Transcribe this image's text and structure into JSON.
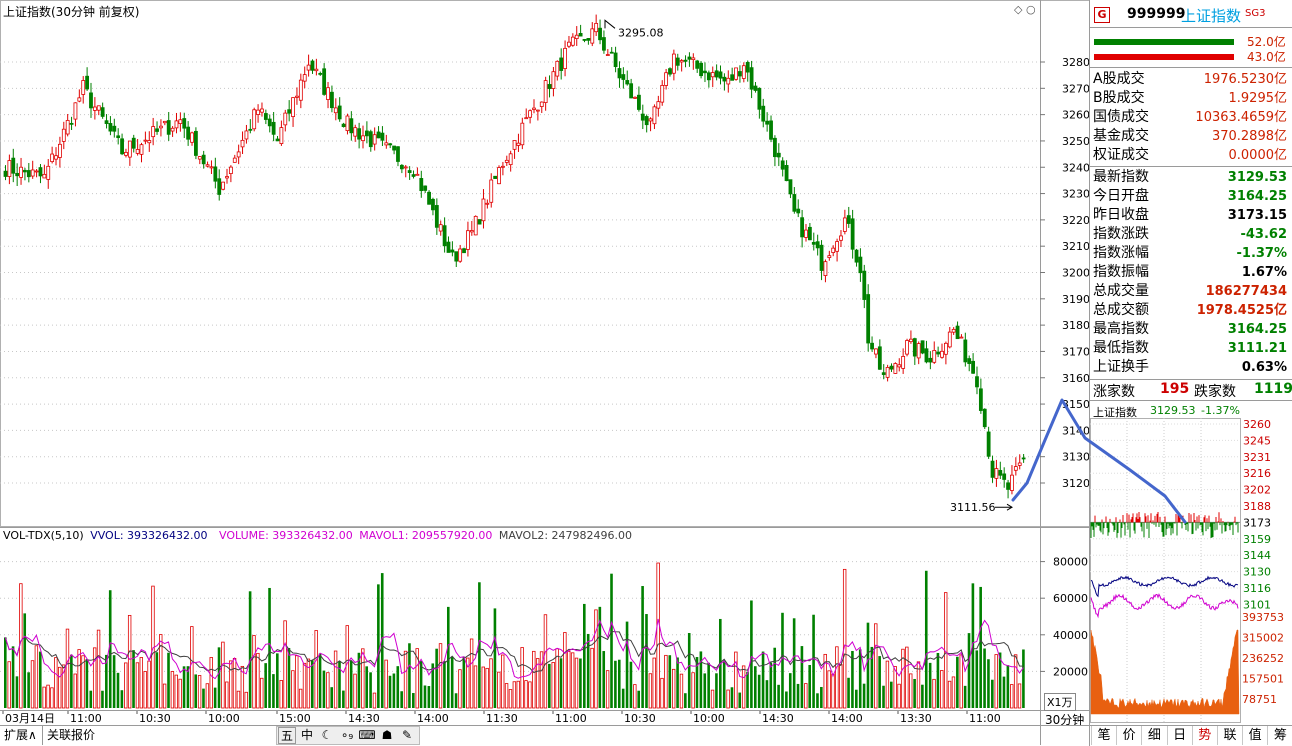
{
  "chart_title": "上证指数(30分钟 前复权)",
  "price_axis": {
    "ticks": [
      "3280",
      "3270",
      "3260",
      "3250",
      "3240",
      "3230",
      "3220",
      "3210",
      "3200",
      "3190",
      "3180",
      "3170",
      "3160",
      "3150",
      "3140",
      "3130",
      "3120"
    ],
    "min": 3111,
    "max": 3302
  },
  "annotations": {
    "high": "3295.08",
    "low": "3111.56"
  },
  "volume_header": {
    "indicator": "VOL-TDX(5,10)",
    "vvol": "VVOL: 393326432.00",
    "volume": "VOLUME: 393326432.00",
    "mavol1": "MAVOL1: 209557920.00",
    "mavol2": "MAVOL2: 247982496.00"
  },
  "volume_axis": {
    "ticks": [
      "80000",
      "60000",
      "40000",
      "20000"
    ],
    "unit": "X1万"
  },
  "time_axis": [
    "03月14日",
    "11:00",
    "10:30",
    "10:00",
    "15:00",
    "14:30",
    "14:00",
    "11:30",
    "11:00",
    "10:30",
    "10:00",
    "14:30",
    "14:00",
    "13:30",
    "11:00"
  ],
  "period_label": "30分钟",
  "bottom_left": {
    "expand": "扩展∧",
    "related": "关联报价"
  },
  "toolbar_icons": [
    "五",
    "中",
    "☾",
    "∘₉",
    "⌨",
    "☗",
    "♟",
    "✎"
  ],
  "sidebar": {
    "badge": "G",
    "code": "999999",
    "name": "上证指数",
    "suffix": "SG3",
    "bar_top_value": "52.0亿",
    "bar_bottom_value": "43.0亿",
    "turnover": [
      {
        "label": "A股成交",
        "value": "1976.5230亿"
      },
      {
        "label": "B股成交",
        "value": "1.9295亿"
      },
      {
        "label": "国债成交",
        "value": "10363.4659亿"
      },
      {
        "label": "基金成交",
        "value": "370.2898亿"
      },
      {
        "label": "权证成交",
        "value": "0.0000亿"
      }
    ],
    "stats": [
      {
        "label": "最新指数",
        "value": "3129.53",
        "color": "green"
      },
      {
        "label": "今日开盘",
        "value": "3164.25",
        "color": "green"
      },
      {
        "label": "昨日收盘",
        "value": "3173.15",
        "color": "black"
      },
      {
        "label": "指数涨跌",
        "value": "-43.62",
        "color": "green"
      },
      {
        "label": "指数涨幅",
        "value": "-1.37%",
        "color": "green"
      },
      {
        "label": "指数振幅",
        "value": "1.67%",
        "color": "black"
      },
      {
        "label": "总成交量",
        "value": "186277434",
        "color": "red"
      },
      {
        "label": "总成交额",
        "value": "1978.4525亿",
        "color": "red"
      },
      {
        "label": "最高指数",
        "value": "3164.25",
        "color": "green"
      },
      {
        "label": "最低指数",
        "value": "3111.21",
        "color": "green"
      },
      {
        "label": "上证换手",
        "value": "0.63%",
        "color": "black"
      }
    ],
    "up_label": "涨家数",
    "up_value": "195",
    "down_label": "跌家数",
    "down_value": "1119",
    "mini_title": "上证指数",
    "mini_value": "3129.53",
    "mini_change": "-1.37%",
    "mini_price_ticks": [
      "3260",
      "3245",
      "3231",
      "3216",
      "3202",
      "3188",
      "3173",
      "3159",
      "3144",
      "3130",
      "3116",
      "3101"
    ],
    "mini_vol_ticks": [
      "393753",
      "315002",
      "236252",
      "157501",
      "78751"
    ],
    "tabs": [
      "笔",
      "价",
      "细",
      "日",
      "势",
      "联",
      "值",
      "筹"
    ],
    "active_tab": "势"
  },
  "colors": {
    "up": "#e00000",
    "down": "#008000",
    "ma1": "#d000d0",
    "ma2": "#404040",
    "annotation_line": "#4466cc"
  }
}
